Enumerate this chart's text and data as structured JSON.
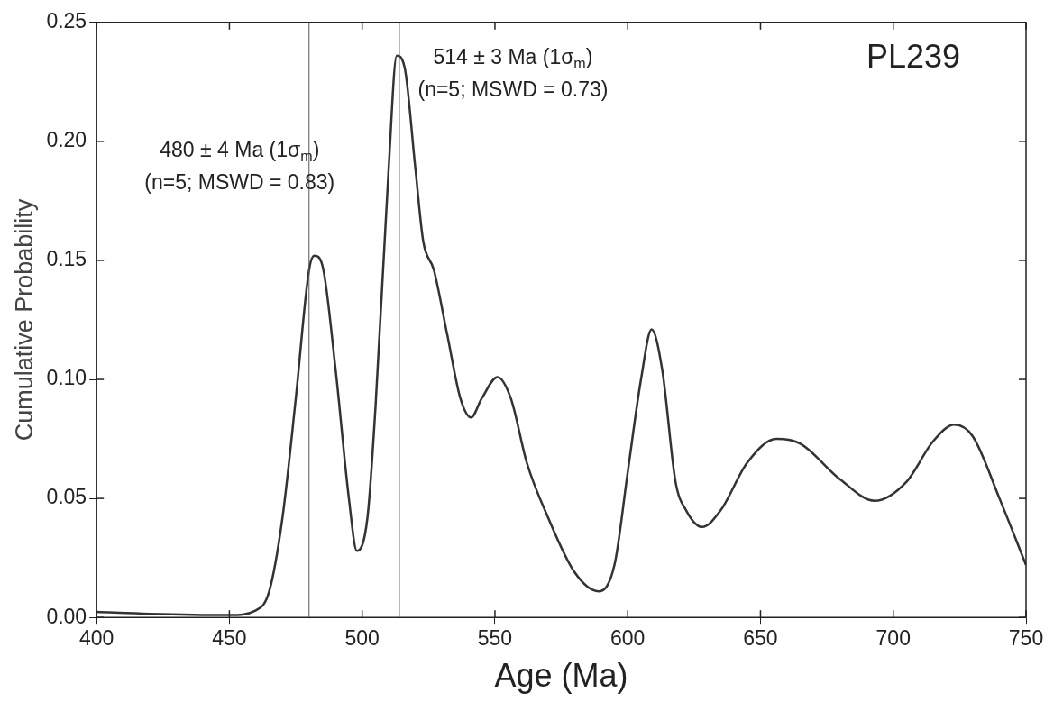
{
  "chart_data": {
    "type": "line",
    "xlabel": "Age (Ma)",
    "ylabel": "Cumulative Probability",
    "x": [
      400,
      420,
      450,
      460,
      465,
      470,
      475,
      480,
      482,
      485,
      490,
      495,
      498,
      502,
      505,
      510,
      513,
      516,
      520,
      523,
      527,
      532,
      537,
      541,
      545,
      551,
      556,
      562,
      570,
      580,
      589,
      595,
      600,
      605,
      609,
      613,
      618,
      622,
      628,
      635,
      645,
      656,
      665,
      680,
      693,
      705,
      715,
      723,
      730,
      740,
      750
    ],
    "values": [
      0.0023,
      0.0015,
      0.001,
      0.003,
      0.011,
      0.042,
      0.092,
      0.146,
      0.152,
      0.148,
      0.104,
      0.05,
      0.028,
      0.042,
      0.088,
      0.189,
      0.236,
      0.231,
      0.189,
      0.158,
      0.146,
      0.119,
      0.092,
      0.084,
      0.092,
      0.101,
      0.092,
      0.065,
      0.042,
      0.019,
      0.011,
      0.022,
      0.061,
      0.1,
      0.121,
      0.104,
      0.057,
      0.045,
      0.038,
      0.045,
      0.065,
      0.075,
      0.073,
      0.058,
      0.049,
      0.057,
      0.074,
      0.081,
      0.076,
      0.05,
      0.022
    ],
    "color": "#333333",
    "marker": "none",
    "line_style": "solid",
    "xlim": [
      400,
      750
    ],
    "xticks": [
      400,
      450,
      500,
      550,
      600,
      650,
      700,
      750
    ],
    "ylim": [
      0,
      0.25
    ],
    "yticks": [
      {
        "value": 0,
        "label": "0.00"
      },
      {
        "value": 0.05,
        "label": "0.05"
      },
      {
        "value": 0.1,
        "label": "0.10"
      },
      {
        "value": 0.15,
        "label": "0.15"
      },
      {
        "value": 0.2,
        "label": "0.20"
      },
      {
        "value": 0.25,
        "label": "0.25"
      }
    ],
    "ref_lines": [
      {
        "axis": "x",
        "value": 480,
        "color": "#555555",
        "label": "480 ± 4 Ma (1σ$_{m}$)\n(n=5; MSWD = 0.83)"
      },
      {
        "axis": "x",
        "value": 514,
        "color": "#555555",
        "label": "514 ± 3 Ma (1σ$_{m}$)\n(n=5; MSWD = 0.73)"
      }
    ],
    "annotations": [
      "PL239"
    ],
    "grid": false,
    "legend": false
  }
}
